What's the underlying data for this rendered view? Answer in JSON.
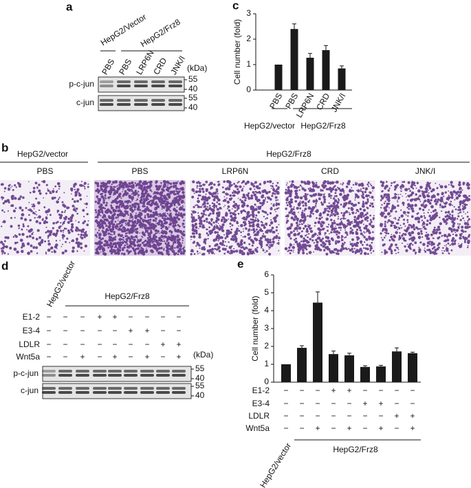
{
  "panel_a": {
    "letter": "a",
    "groups": [
      "HepG2/Vector",
      "HepG2/Frz8"
    ],
    "lanes": [
      "PBS",
      "PBS",
      "LRP6N",
      "CRD",
      "JNK/I"
    ],
    "unit": "(kDa)",
    "blots": [
      {
        "label": "p-c-jun",
        "markers": [
          55,
          40
        ]
      },
      {
        "label": "c-jun",
        "markers": [
          55,
          40
        ]
      }
    ]
  },
  "panel_b": {
    "letter": "b",
    "groups": [
      "HepG2/vector",
      "HepG2/Frz8"
    ],
    "images": [
      "PBS",
      "PBS",
      "LRP6N",
      "CRD",
      "JNK/I"
    ]
  },
  "panel_d": {
    "letter": "d",
    "groups": [
      "HepG2/vector",
      "HepG2/Frz8"
    ],
    "unit": "(kDa)",
    "rows": [
      {
        "label": "E1-2",
        "cells": [
          "−",
          "−",
          "−",
          "+",
          "+",
          "−",
          "−",
          "−",
          "−"
        ]
      },
      {
        "label": "E3-4",
        "cells": [
          "−",
          "−",
          "−",
          "−",
          "−",
          "+",
          "+",
          "−",
          "−"
        ]
      },
      {
        "label": "LDLR",
        "cells": [
          "−",
          "−",
          "−",
          "−",
          "−",
          "−",
          "−",
          "+",
          "+"
        ]
      },
      {
        "label": "Wnt5a",
        "cells": [
          "−",
          "−",
          "+",
          "−",
          "+",
          "−",
          "+",
          "−",
          "+"
        ]
      }
    ],
    "blots": [
      {
        "label": "p-c-jun",
        "markers": [
          55,
          40
        ]
      },
      {
        "label": "c-jun",
        "markers": [
          55,
          40
        ]
      }
    ]
  },
  "chart_data": [
    {
      "type": "bar",
      "letter": "c",
      "ylabel": "Cell number (fold)",
      "categories": [
        "PBS",
        "PBS",
        "LRP6N",
        "CRD",
        "JNK/I"
      ],
      "values": [
        1.0,
        2.4,
        1.27,
        1.57,
        0.85
      ],
      "errors": [
        null,
        0.2,
        0.17,
        0.18,
        0.1
      ],
      "ylim": [
        0,
        3
      ],
      "yticks": [
        0,
        1,
        2,
        3
      ],
      "color": "#1a1a1a",
      "groups": [
        "HepG2/vector",
        "HepG2/Frz8"
      ]
    },
    {
      "type": "bar",
      "letter": "e",
      "ylabel": "Cell number (fold)",
      "categories": [
        null,
        null,
        null,
        null,
        null,
        null,
        null,
        null,
        null
      ],
      "values": [
        1.0,
        1.92,
        4.45,
        1.57,
        1.5,
        0.85,
        0.88,
        1.72,
        1.62
      ],
      "errors": [
        null,
        0.12,
        0.6,
        0.17,
        0.12,
        0.07,
        0.06,
        0.2,
        0.06
      ],
      "ylim": [
        0,
        6
      ],
      "yticks": [
        0,
        1,
        2,
        3,
        4,
        5,
        6
      ],
      "color": "#1a1a1a",
      "rows": [
        {
          "label": "E1-2",
          "cells": [
            "−",
            "−",
            "−",
            "+",
            "+",
            "−",
            "−",
            "−",
            "−"
          ]
        },
        {
          "label": "E3-4",
          "cells": [
            "−",
            "−",
            "−",
            "−",
            "−",
            "+",
            "+",
            "−",
            "−"
          ]
        },
        {
          "label": "LDLR",
          "cells": [
            "−",
            "−",
            "−",
            "−",
            "−",
            "−",
            "−",
            "+",
            "+"
          ]
        },
        {
          "label": "Wnt5a",
          "cells": [
            "−",
            "−",
            "+",
            "−",
            "+",
            "−",
            "+",
            "−",
            "+"
          ]
        }
      ],
      "groups": [
        "HepG2/vector",
        "HepG2/Frz8"
      ]
    }
  ]
}
